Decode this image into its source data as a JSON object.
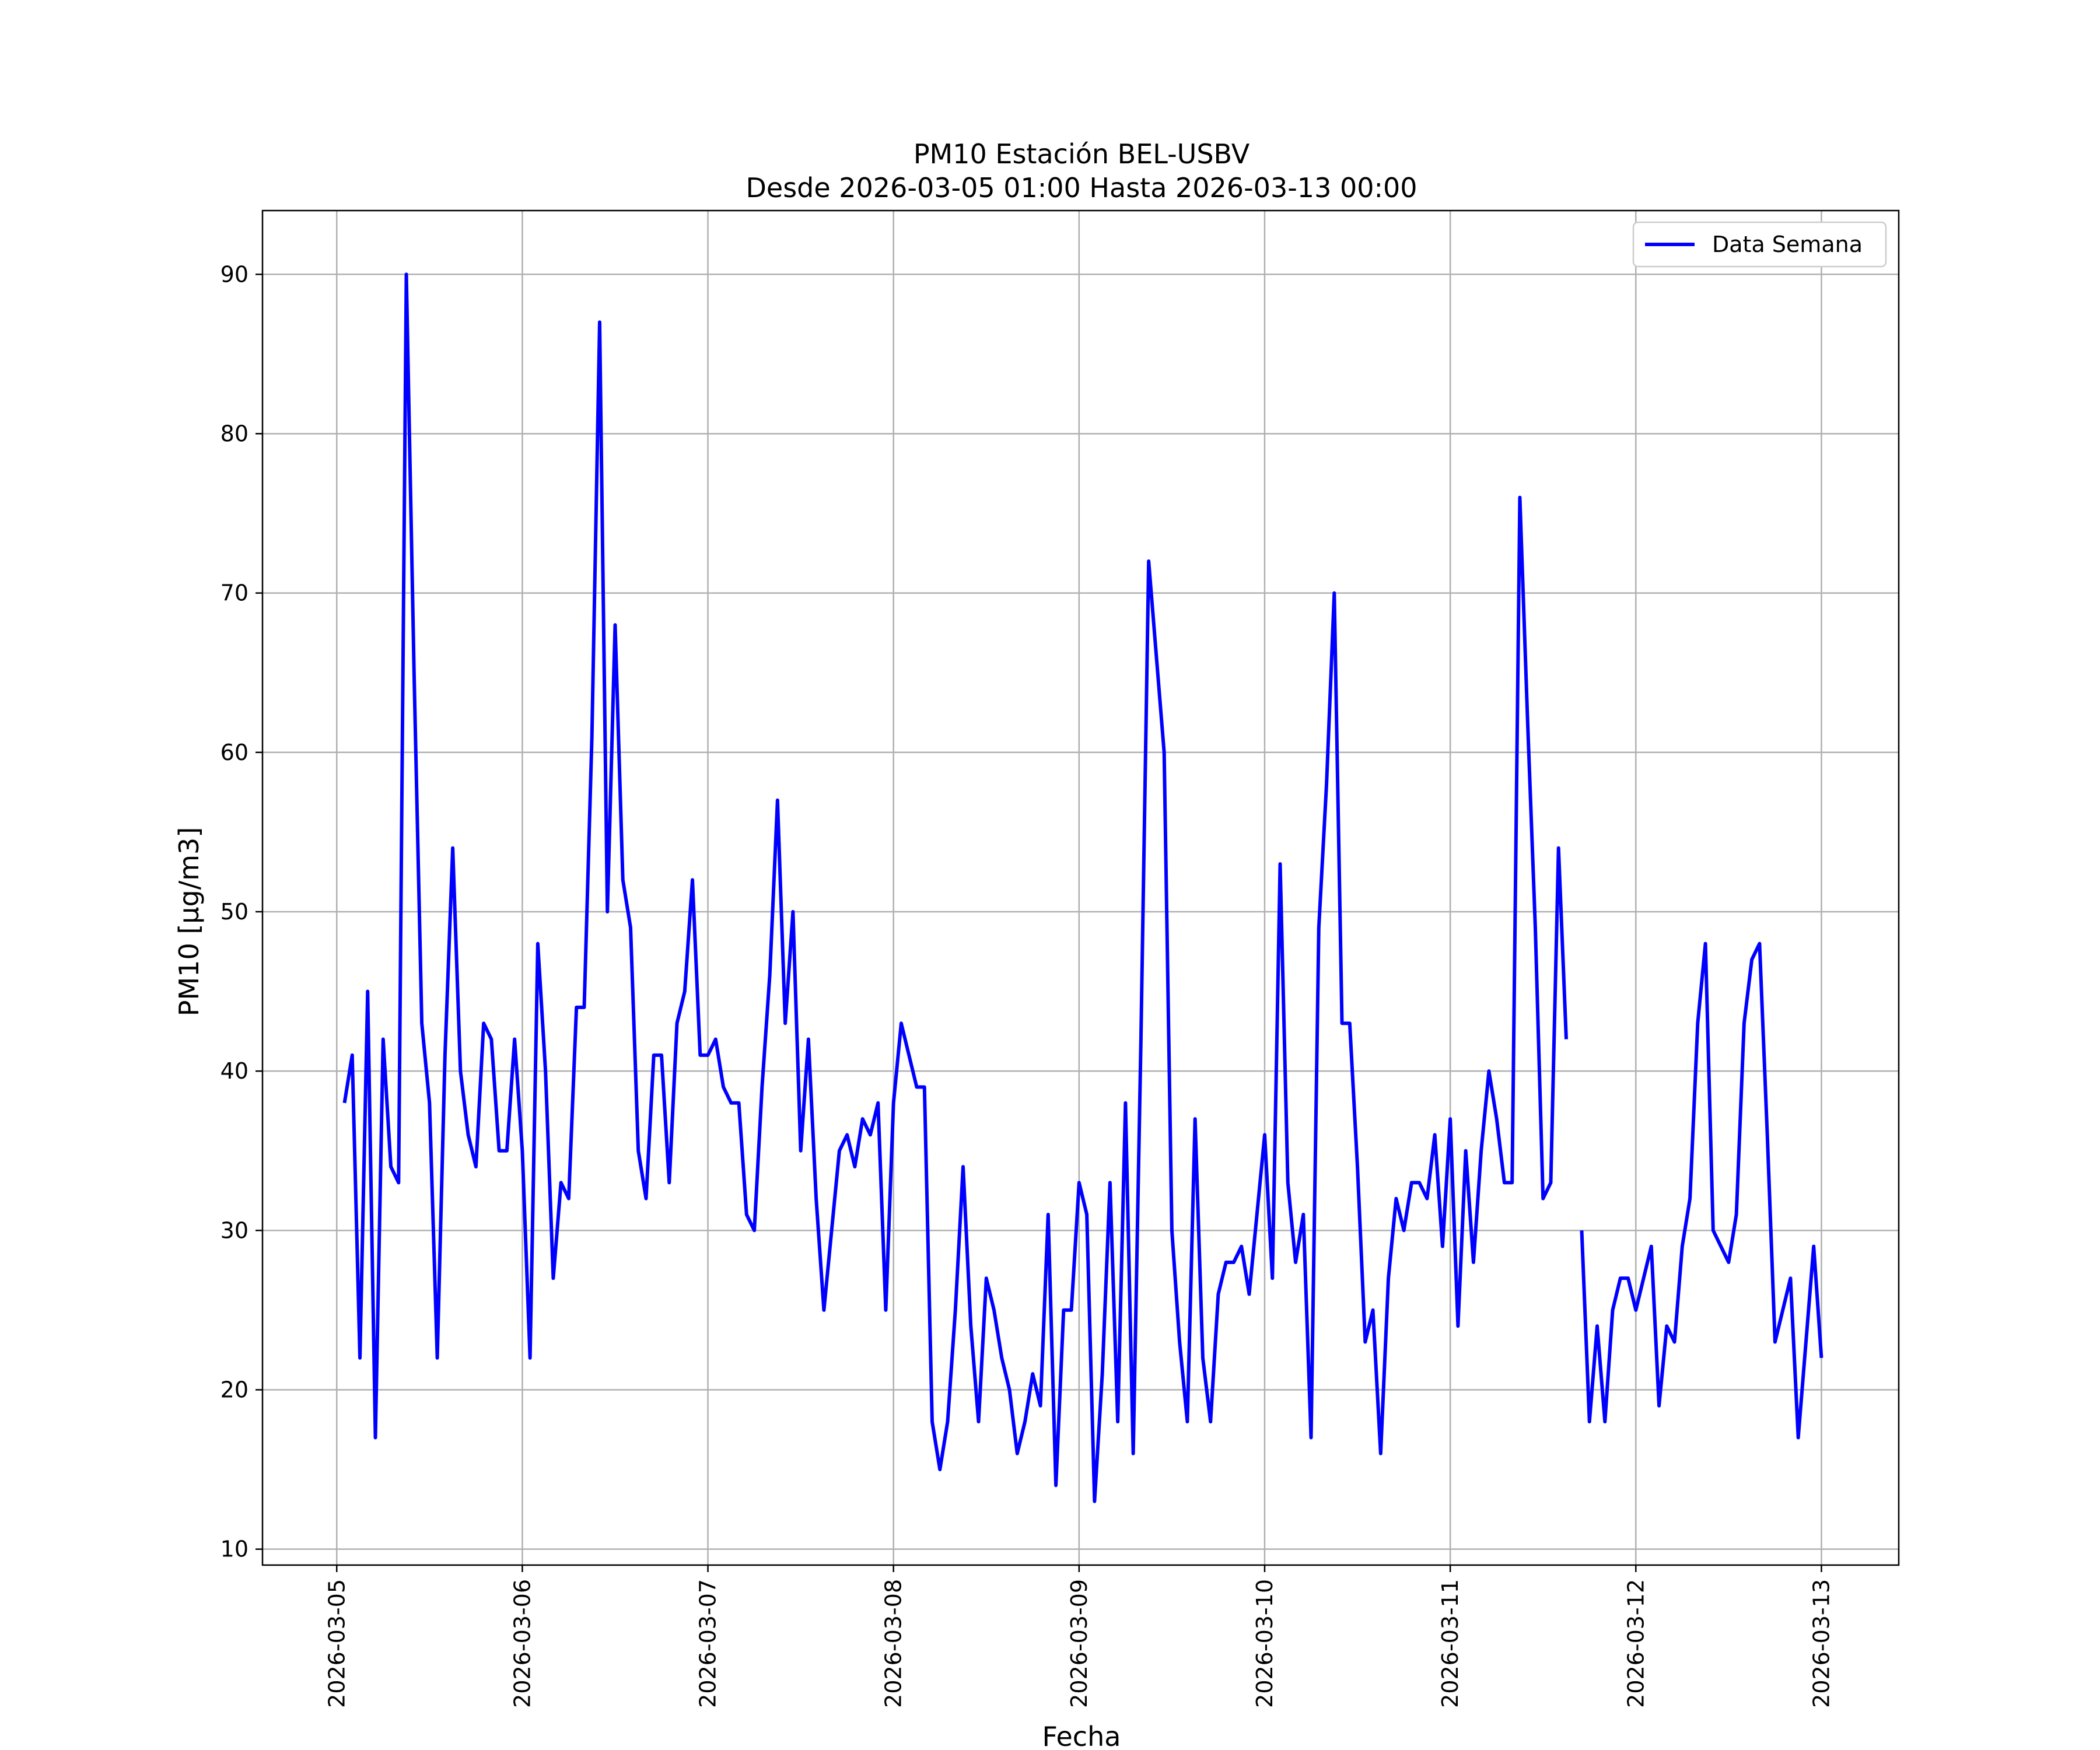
{
  "chart_data": {
    "type": "line",
    "title_line1": "PM10 Estación BEL-USBV",
    "title_line2": "Desde 2026-03-05 01:00 Hasta 2026-03-13 00:00",
    "xlabel": "Fecha",
    "ylabel": "PM10 [μg/m3]",
    "xlim": [
      "2026-03-04 14:24",
      "2026-03-13 10:00"
    ],
    "ylim": [
      9,
      94
    ],
    "x_ticks": [
      "2026-03-05",
      "2026-03-06",
      "2026-03-07",
      "2026-03-08",
      "2026-03-09",
      "2026-03-10",
      "2026-03-11",
      "2026-03-12",
      "2026-03-13"
    ],
    "y_ticks": [
      10,
      20,
      30,
      40,
      50,
      60,
      70,
      80,
      90
    ],
    "grid": true,
    "legend_position": "top-right",
    "colors": {
      "series": "#0000ff",
      "grid": "#b0b0b0"
    },
    "x_start": "2026-03-05 01:00",
    "x_step": "1 hour",
    "series": [
      {
        "name": "Data Semana",
        "values": [
          38,
          41,
          22,
          45,
          17,
          42,
          34,
          33,
          90,
          65,
          43,
          38,
          22,
          41,
          54,
          40,
          36,
          34,
          43,
          42,
          35,
          35,
          42,
          35,
          22,
          48,
          40,
          27,
          33,
          32,
          44,
          44,
          61,
          87,
          50,
          68,
          52,
          49,
          35,
          32,
          41,
          41,
          33,
          43,
          45,
          52,
          41,
          41,
          42,
          39,
          38,
          38,
          31,
          30,
          39,
          46,
          57,
          43,
          50,
          35,
          42,
          32,
          25,
          30,
          35,
          36,
          34,
          37,
          36,
          38,
          25,
          38,
          43,
          41,
          39,
          39,
          18,
          15,
          18,
          25,
          34,
          24,
          18,
          27,
          25,
          22,
          20,
          16,
          18,
          21,
          19,
          31,
          14,
          25,
          25,
          33,
          31,
          13,
          21,
          33,
          18,
          38,
          16,
          42,
          72,
          66,
          60,
          30,
          23,
          18,
          37,
          22,
          18,
          26,
          28,
          28,
          29,
          26,
          31,
          36,
          27,
          53,
          33,
          28,
          31,
          17,
          49,
          58,
          70,
          43,
          43,
          34,
          23,
          25,
          16,
          27,
          32,
          30,
          33,
          33,
          32,
          36,
          29,
          37,
          24,
          35,
          28,
          35,
          40,
          37,
          33,
          33,
          76,
          62,
          49,
          32,
          33,
          54,
          42,
          null,
          30,
          18,
          24,
          18,
          25,
          27,
          27,
          25,
          27,
          29,
          19,
          24,
          23,
          29,
          32,
          43,
          48,
          30,
          29,
          28,
          31,
          43,
          47,
          48,
          36,
          23,
          25,
          27,
          17,
          23,
          29,
          22
        ]
      }
    ]
  }
}
